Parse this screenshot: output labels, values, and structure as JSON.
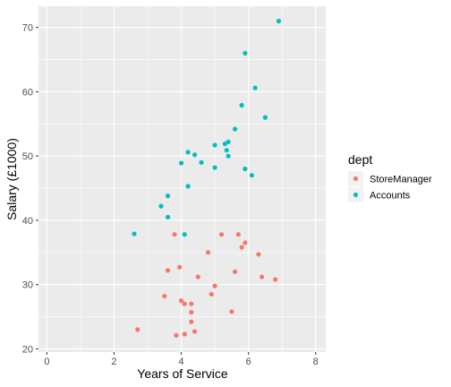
{
  "chart_data": {
    "type": "scatter",
    "xlabel": "Years of Service",
    "ylabel": "Salary (£1000)",
    "xlim": [
      -0.25,
      8.3
    ],
    "ylim": [
      19.5,
      73.3
    ],
    "xticks": [
      0,
      2,
      4,
      6,
      8
    ],
    "yticks": [
      20,
      30,
      40,
      50,
      60,
      70
    ],
    "grid": true,
    "legend": {
      "title": "dept",
      "position": "right"
    },
    "series": [
      {
        "name": "StoreManager",
        "color": "#F8766D",
        "points": [
          [
            2.7,
            23.0
          ],
          [
            3.5,
            28.2
          ],
          [
            3.6,
            32.2
          ],
          [
            3.8,
            37.8
          ],
          [
            3.85,
            22.1
          ],
          [
            3.95,
            32.7
          ],
          [
            4.0,
            27.5
          ],
          [
            4.1,
            22.3
          ],
          [
            4.1,
            27.0
          ],
          [
            4.3,
            27.0
          ],
          [
            4.3,
            25.7
          ],
          [
            4.3,
            24.2
          ],
          [
            4.4,
            22.7
          ],
          [
            4.5,
            31.2
          ],
          [
            4.8,
            35.0
          ],
          [
            4.9,
            28.5
          ],
          [
            5.0,
            29.8
          ],
          [
            5.2,
            37.8
          ],
          [
            5.5,
            25.8
          ],
          [
            5.6,
            32.0
          ],
          [
            5.7,
            37.8
          ],
          [
            5.8,
            35.8
          ],
          [
            5.9,
            36.5
          ],
          [
            6.3,
            34.7
          ],
          [
            6.4,
            31.2
          ],
          [
            6.8,
            30.8
          ]
        ]
      },
      {
        "name": "Accounts",
        "color": "#00BFC4",
        "points": [
          [
            2.6,
            37.9
          ],
          [
            3.4,
            42.2
          ],
          [
            3.6,
            43.8
          ],
          [
            3.6,
            40.5
          ],
          [
            4.0,
            48.9
          ],
          [
            4.1,
            37.8
          ],
          [
            4.2,
            50.6
          ],
          [
            4.2,
            45.3
          ],
          [
            4.4,
            50.2
          ],
          [
            4.6,
            49.0
          ],
          [
            5.0,
            51.7
          ],
          [
            5.0,
            48.2
          ],
          [
            5.3,
            51.9
          ],
          [
            5.35,
            50.9
          ],
          [
            5.4,
            52.2
          ],
          [
            5.4,
            50.0
          ],
          [
            5.6,
            54.2
          ],
          [
            5.8,
            57.9
          ],
          [
            5.9,
            66.0
          ],
          [
            5.9,
            48.0
          ],
          [
            6.1,
            47.0
          ],
          [
            6.2,
            60.6
          ],
          [
            6.5,
            56.0
          ],
          [
            6.9,
            71.0
          ]
        ]
      }
    ]
  }
}
